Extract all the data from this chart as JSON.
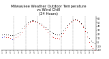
{
  "title": "Milwaukee Weather Outdoor Temperature\nvs Wind Chill\n(24 Hours)",
  "title_fontsize": 3.8,
  "background_color": "#ffffff",
  "grid_color": "#888888",
  "temp": [
    20,
    21,
    19,
    20,
    18,
    17,
    18,
    20,
    22,
    27,
    34,
    41,
    47,
    51,
    54,
    56,
    55,
    54,
    52,
    49,
    46,
    42,
    38,
    33,
    28,
    25,
    22,
    21,
    20,
    19,
    23,
    29,
    37,
    43,
    49,
    54,
    57,
    59,
    57,
    54,
    49,
    42,
    34,
    24,
    11,
    4,
    0,
    -3
  ],
  "windchill": [
    13,
    14,
    12,
    13,
    10,
    8,
    9,
    12,
    15,
    20,
    27,
    35,
    42,
    47,
    51,
    54,
    53,
    52,
    50,
    47,
    43,
    38,
    33,
    26,
    20,
    14,
    12,
    11,
    10,
    9,
    16,
    23,
    31,
    38,
    45,
    51,
    55,
    57,
    55,
    52,
    46,
    38,
    28,
    15,
    0,
    -10,
    -15,
    -20
  ],
  "temp_color": "#000000",
  "windchill_color": "#cc0000",
  "blue_color": "#0000cc",
  "blue_wc_indices": [
    0,
    1,
    5
  ],
  "dot_size": 1.5,
  "ylim": [
    -20,
    65
  ],
  "yticks": [
    -20,
    -10,
    0,
    10,
    20,
    30,
    40,
    50,
    60
  ],
  "ytick_labels": [
    "-20",
    "-10",
    "0",
    "10",
    "20",
    "30",
    "40",
    "50",
    "60"
  ],
  "vline_positions": [
    7,
    13,
    19,
    25,
    31,
    37,
    43
  ],
  "xtick_positions": [
    1,
    3,
    5,
    7,
    9,
    11,
    13,
    15,
    17,
    19,
    21,
    23,
    25,
    27,
    29,
    31,
    33,
    35,
    37,
    39,
    41,
    43,
    45,
    47
  ],
  "xtick_labels": [
    "1",
    "3",
    "5",
    "1",
    "3",
    "5",
    "1",
    "3",
    "5",
    "1",
    "3",
    "5",
    "1",
    "3",
    "5",
    "1",
    "3",
    "5",
    "1",
    "3",
    "5",
    "1",
    "3",
    "5"
  ]
}
